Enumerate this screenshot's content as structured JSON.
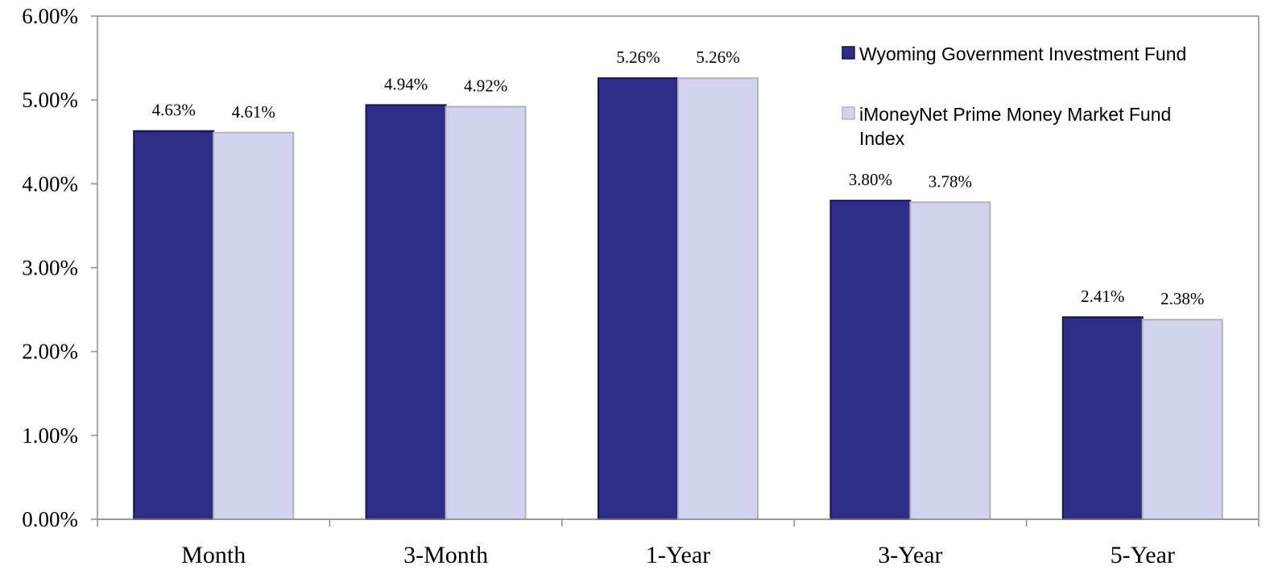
{
  "chart_data": {
    "type": "bar",
    "categories": [
      "Month",
      "3-Month",
      "1-Year",
      "3-Year",
      "5-Year"
    ],
    "series": [
      {
        "name": "Wyoming Government Investment Fund",
        "values": [
          4.63,
          4.94,
          5.26,
          3.8,
          2.41
        ],
        "labels": [
          "4.63%",
          "4.94%",
          "5.26%",
          "3.80%",
          "2.41%"
        ],
        "color": "#2e2d88",
        "border": "#14145a"
      },
      {
        "name": "iMoneyNet Prime Money Market Fund Index",
        "values": [
          4.61,
          4.92,
          5.26,
          3.78,
          2.38
        ],
        "labels": [
          "4.61%",
          "4.92%",
          "5.26%",
          "3.78%",
          "2.38%"
        ],
        "color": "#d2d3ef",
        "border": "#b4b4b4"
      }
    ],
    "ylim": [
      0,
      6
    ],
    "yticks": [
      0,
      1,
      2,
      3,
      4,
      5,
      6
    ],
    "ytick_labels": [
      "0.00%",
      "1.00%",
      "2.00%",
      "3.00%",
      "4.00%",
      "5.00%",
      "6.00%"
    ],
    "title": "",
    "xlabel": "",
    "ylabel": "",
    "grid": false,
    "legend_position": "top-right",
    "legend_lines": [
      [
        "Wyoming Government Investment Fund"
      ],
      [
        "iMoneyNet Prime Money Market Fund",
        "Index"
      ]
    ]
  }
}
